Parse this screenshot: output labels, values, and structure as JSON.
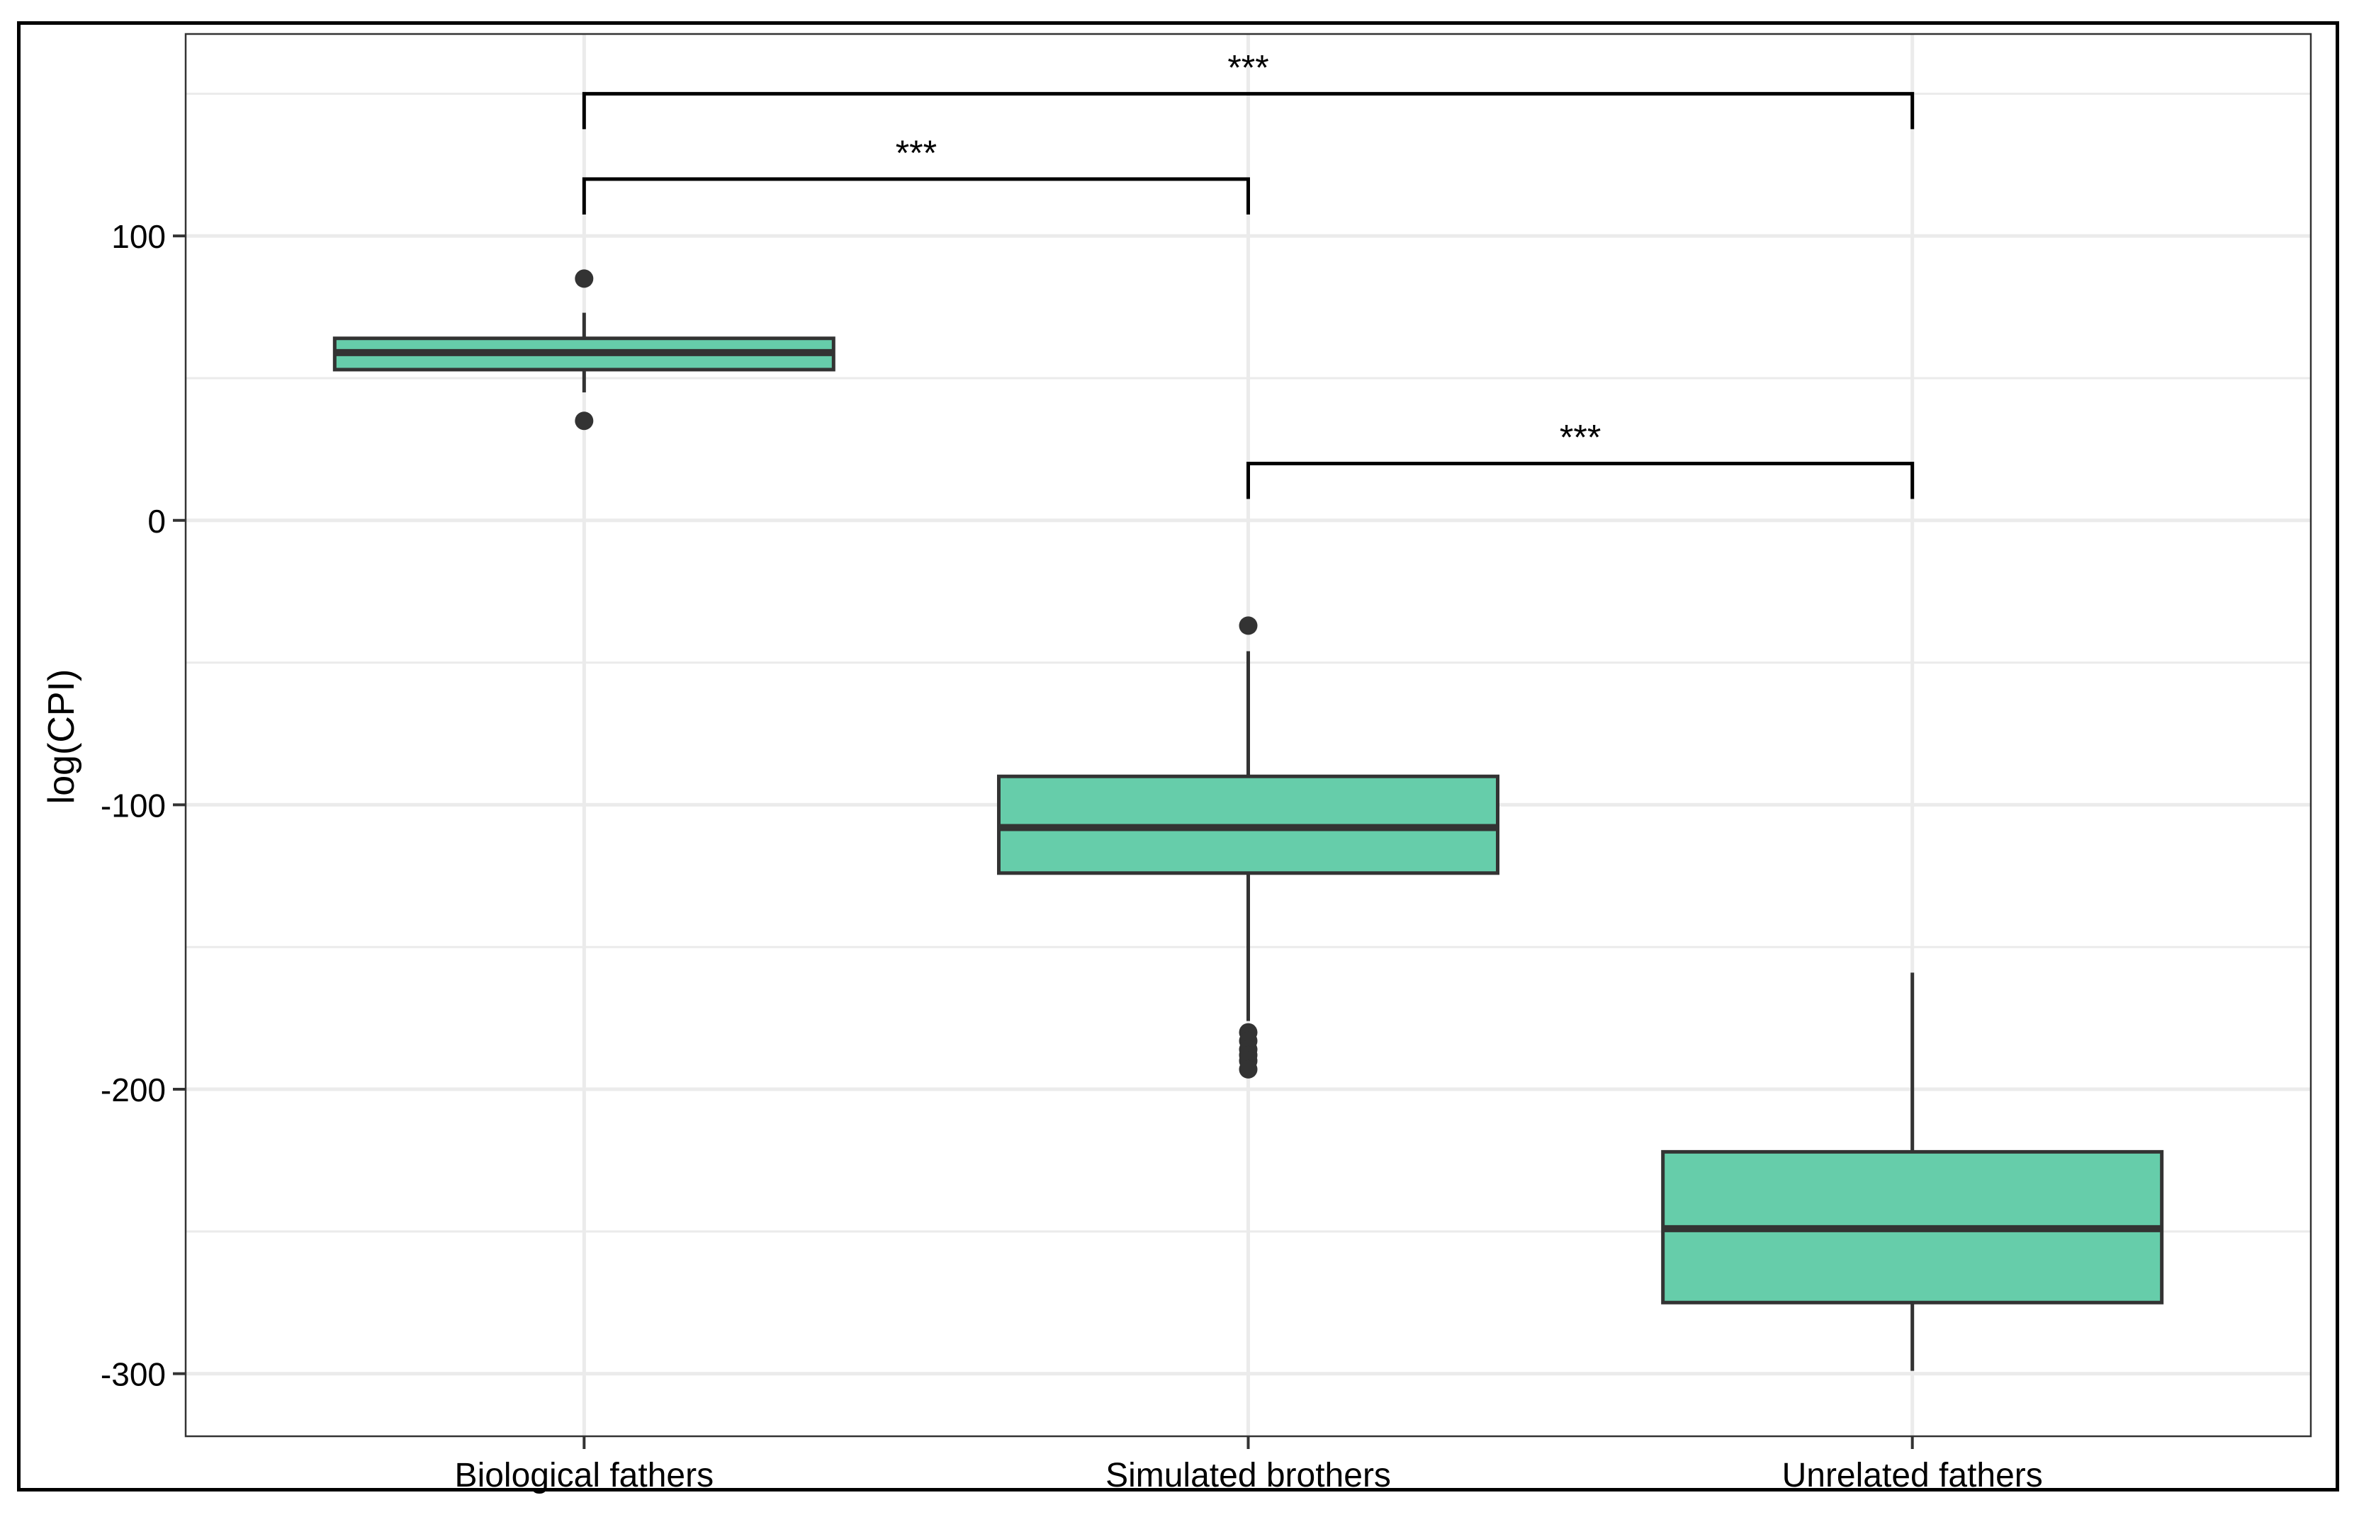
{
  "chart_data": {
    "type": "boxplot",
    "title": "",
    "xlabel": "",
    "ylabel": "log(CPI)",
    "ylim": [
      -322,
      171
    ],
    "yticks": [
      100,
      0,
      -100,
      -200,
      -300
    ],
    "ytick_labels": [
      "100",
      "0",
      "-100",
      "-200",
      "-300"
    ],
    "grid": true,
    "categories": [
      "Biological fathers",
      "Simulated brothers",
      "Unrelated fathers"
    ],
    "boxes": [
      {
        "category": "Biological fathers",
        "whisker_low": 45,
        "q1": 53,
        "median": 59,
        "q3": 64,
        "whisker_high": 73,
        "outliers": [
          85,
          35
        ]
      },
      {
        "category": "Simulated brothers",
        "whisker_low": -176,
        "q1": -124,
        "median": -108,
        "q3": -90,
        "whisker_high": -46,
        "outliers": [
          -37,
          -180,
          -183,
          -186,
          -188,
          -190,
          -193
        ]
      },
      {
        "category": "Unrelated fathers",
        "whisker_low": -299,
        "q1": -275,
        "median": -249,
        "q3": -222,
        "whisker_high": -159,
        "outliers": []
      }
    ],
    "significance": [
      {
        "from": 0,
        "to": 2,
        "y": 150,
        "label": "***"
      },
      {
        "from": 0,
        "to": 1,
        "y": 120,
        "label": "***"
      },
      {
        "from": 1,
        "to": 2,
        "y": 20,
        "label": "***"
      }
    ],
    "colors": {
      "box_fill": "#66cdaa",
      "box_stroke": "#333333",
      "grid": "#ebebeb",
      "panel_border": "#333333"
    }
  }
}
